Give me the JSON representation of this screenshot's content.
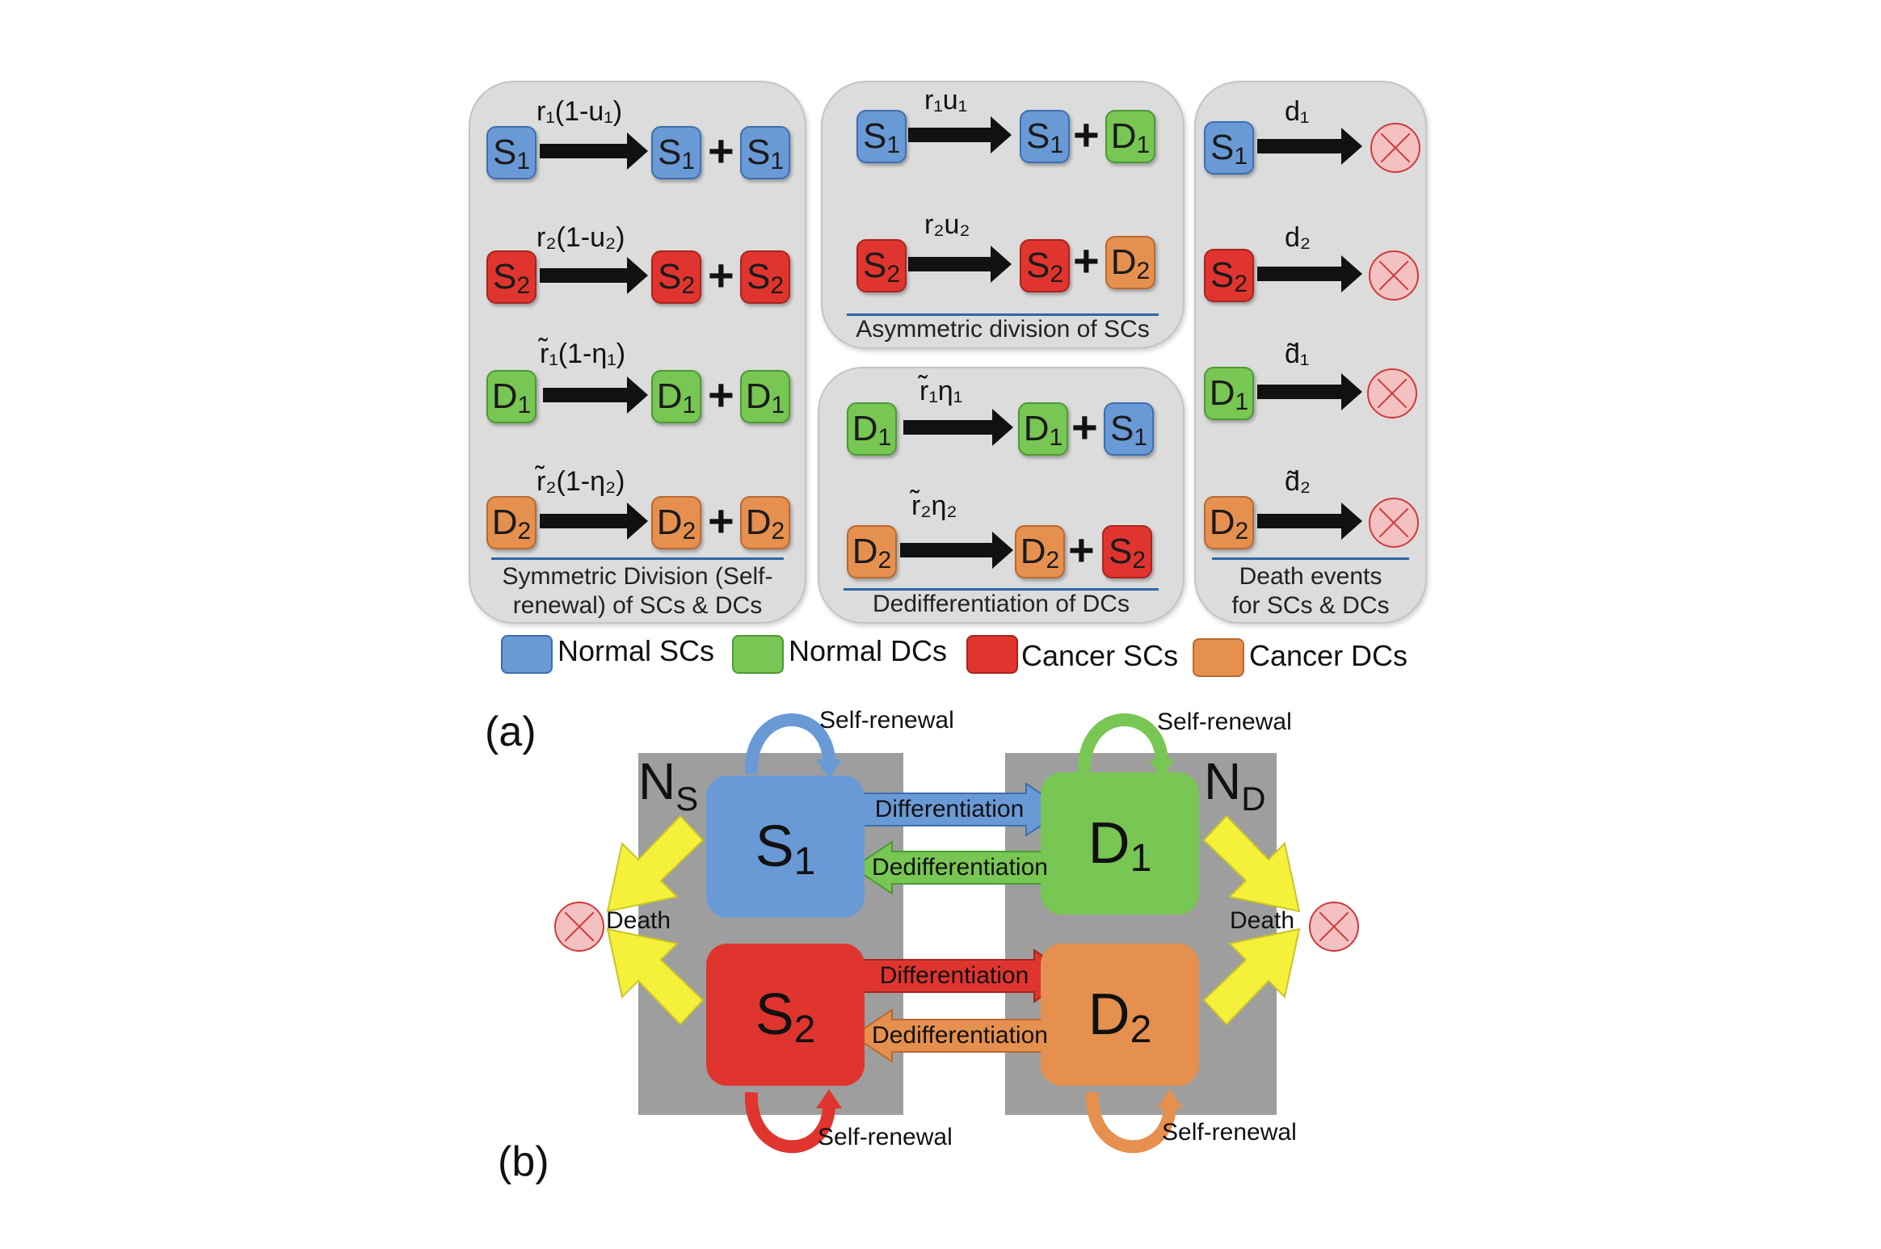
{
  "panels": {
    "symmetric": {
      "caption_line1": "Symmetric Division (Self-",
      "caption_line2": "renewal) of SCs & DCs",
      "rows": [
        {
          "rate": "r₁(1-u₁)",
          "left": "S",
          "left_sub": "1",
          "r1": "S",
          "r1_sub": "1",
          "r2": "S",
          "r2_sub": "1"
        },
        {
          "rate": "r₂(1-u₂)",
          "left": "S",
          "left_sub": "2",
          "r1": "S",
          "r1_sub": "2",
          "r2": "S",
          "r2_sub": "2"
        },
        {
          "rate": "r̃₁(1-η₁)",
          "left": "D",
          "left_sub": "1",
          "r1": "D",
          "r1_sub": "1",
          "r2": "D",
          "r2_sub": "1"
        },
        {
          "rate": "r̃₂(1-η₂)",
          "left": "D",
          "left_sub": "2",
          "r1": "D",
          "r1_sub": "2",
          "r2": "D",
          "r2_sub": "2"
        }
      ]
    },
    "asymmetric": {
      "caption": "Asymmetric division of SCs",
      "rows": [
        {
          "rate": "r₁u₁",
          "left": "S",
          "left_sub": "1",
          "r1": "S",
          "r1_sub": "1",
          "r2": "D",
          "r2_sub": "1"
        },
        {
          "rate": "r₂u₂",
          "left": "S",
          "left_sub": "2",
          "r1": "S",
          "r1_sub": "2",
          "r2": "D",
          "r2_sub": "2"
        }
      ]
    },
    "dediff": {
      "caption": "Dedifferentiation of DCs",
      "rows": [
        {
          "rate": "r̃₁η₁",
          "left": "D",
          "left_sub": "1",
          "r1": "D",
          "r1_sub": "1",
          "r2": "S",
          "r2_sub": "1"
        },
        {
          "rate": "r̃₂η₂",
          "left": "D",
          "left_sub": "2",
          "r1": "D",
          "r1_sub": "2",
          "r2": "S",
          "r2_sub": "2"
        }
      ]
    },
    "death": {
      "caption_line1": "Death events",
      "caption_line2": "for SCs & DCs",
      "rows": [
        {
          "rate": "d₁",
          "left": "S",
          "left_sub": "1"
        },
        {
          "rate": "d₂",
          "left": "S",
          "left_sub": "2"
        },
        {
          "rate": "d̃₁",
          "left": "D",
          "left_sub": "1"
        },
        {
          "rate": "d̃₂",
          "left": "D",
          "left_sub": "2"
        }
      ]
    }
  },
  "legend": {
    "normal_scs": "Normal SCs",
    "normal_dcs": "Normal DCs",
    "cancer_scs": "Cancer SCs",
    "cancer_dcs": "Cancer DCs"
  },
  "labels": {
    "a": "(a)",
    "b": "(b)"
  },
  "schema": {
    "ns": "N",
    "ns_sub": "S",
    "nd": "N",
    "nd_sub": "D",
    "s1": "S",
    "s1_sub": "1",
    "s2": "S",
    "s2_sub": "2",
    "d1": "D",
    "d1_sub": "1",
    "d2": "D",
    "d2_sub": "2",
    "differentiation": "Differentiation",
    "dedifferentiation": "Dedifferentiation",
    "self_renewal": "Self-renewal",
    "death": "Death"
  },
  "colors": {
    "normal_sc": "#6a9ad6",
    "normal_dc": "#78c653",
    "cancer_sc": "#e0352f",
    "cancer_dc": "#e6904f",
    "death_arrow": "#f5f03a",
    "compartment": "#9e9e9e"
  }
}
